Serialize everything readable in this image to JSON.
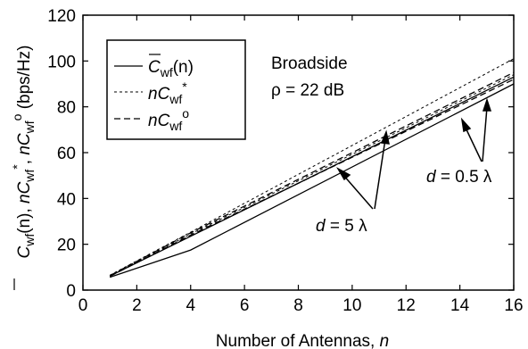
{
  "chart_data": {
    "type": "line",
    "xlabel": {
      "text": "Number of Antennas, ",
      "var": "n"
    },
    "ylabel": {
      "p1": "C",
      "p1sub": "wf",
      "p1rest": "(n), ",
      "p2": "nC",
      "p2sub": "wf",
      "p2sup": "*",
      "p2rest": ", ",
      "p3": "nC",
      "p3sub": "wf",
      "p3sup": "o",
      "p3rest": " (bps/Hz)"
    },
    "xlim": [
      0,
      16
    ],
    "ylim": [
      0,
      120
    ],
    "xticks": [
      "0",
      "2",
      "4",
      "6",
      "8",
      "10",
      "12",
      "14",
      "16"
    ],
    "yticks": [
      "0",
      "20",
      "40",
      "60",
      "80",
      "100",
      "120"
    ],
    "xtick_values": [
      0,
      2,
      4,
      6,
      8,
      10,
      12,
      14,
      16
    ],
    "ytick_values": [
      0,
      20,
      40,
      60,
      80,
      100,
      120
    ],
    "grid": false,
    "legend_position": "top-left",
    "legend": [
      {
        "main": "C",
        "sub": "wf",
        "rest": "(n)",
        "bar": true,
        "sup": "",
        "style": "solid"
      },
      {
        "main": "nC",
        "sub": "wf",
        "rest": "",
        "bar": false,
        "sup": "*",
        "style": "dotted"
      },
      {
        "main": "nC",
        "sub": "wf",
        "rest": "",
        "bar": false,
        "sup": "o",
        "style": "dashed"
      }
    ],
    "text_labels": {
      "line1": "Broadside",
      "line2": "ρ = 22 dB"
    },
    "annotations": [
      {
        "var": "d",
        "rest": " = 5 λ"
      },
      {
        "var": "d",
        "rest": " = 0.5 λ"
      }
    ],
    "series": [
      {
        "group": "d = 5 λ",
        "style": "solid",
        "x": [
          1,
          4,
          16
        ],
        "y": [
          5.6,
          17.5,
          90.0
        ]
      },
      {
        "group": "d = 5 λ",
        "style": "dotted",
        "x": [
          1,
          4,
          16
        ],
        "y": [
          6.2,
          24.5,
          94.0
        ]
      },
      {
        "group": "d = 5 λ",
        "style": "dashed",
        "x": [
          1,
          4,
          16
        ],
        "y": [
          6.0,
          24.0,
          92.0
        ]
      },
      {
        "group": "d = 0.5 λ",
        "style": "solid",
        "x": [
          1,
          4,
          16
        ],
        "y": [
          6.1,
          23.5,
          93.0
        ]
      },
      {
        "group": "d = 0.5 λ",
        "style": "dotted",
        "x": [
          1,
          4,
          16
        ],
        "y": [
          6.5,
          25.3,
          101.0
        ]
      },
      {
        "group": "d = 0.5 λ",
        "style": "dashed",
        "x": [
          1,
          4,
          16
        ],
        "y": [
          6.3,
          25.0,
          95.0
        ]
      }
    ]
  }
}
